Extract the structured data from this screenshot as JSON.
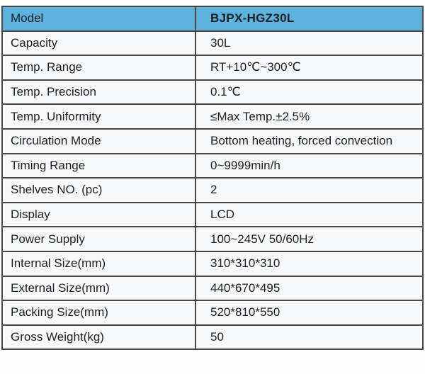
{
  "table": {
    "header": {
      "label": "Model",
      "value": "BJPX-HGZ30L"
    },
    "rows": [
      {
        "label": "Capacity",
        "value": "30L"
      },
      {
        "label": "Temp. Range",
        "value": "RT+10℃~300℃"
      },
      {
        "label": "Temp. Precision",
        "value": "0.1℃"
      },
      {
        "label": "Temp. Uniformity",
        "value": "≤Max Temp.±2.5%"
      },
      {
        "label": "Circulation Mode",
        "value": "Bottom heating, forced convection"
      },
      {
        "label": "Timing Range",
        "value": "0~9999min/h"
      },
      {
        "label": "Shelves NO. (pc)",
        "value": "2"
      },
      {
        "label": "Display",
        "value": "LCD"
      },
      {
        "label": "Power Supply",
        "value": "100~245V 50/60Hz"
      },
      {
        "label": "Internal Size(mm)",
        "value": "310*310*310"
      },
      {
        "label": "External Size(mm)",
        "value": "440*670*495"
      },
      {
        "label": "Packing Size(mm)",
        "value": "520*810*550"
      },
      {
        "label": "Gross Weight(kg)",
        "value": "50"
      }
    ],
    "colors": {
      "header_bg": "#5db3dc",
      "border": "#4b4646",
      "cell_bg": "#f8f9fb",
      "text": "#1e1e1e"
    }
  }
}
